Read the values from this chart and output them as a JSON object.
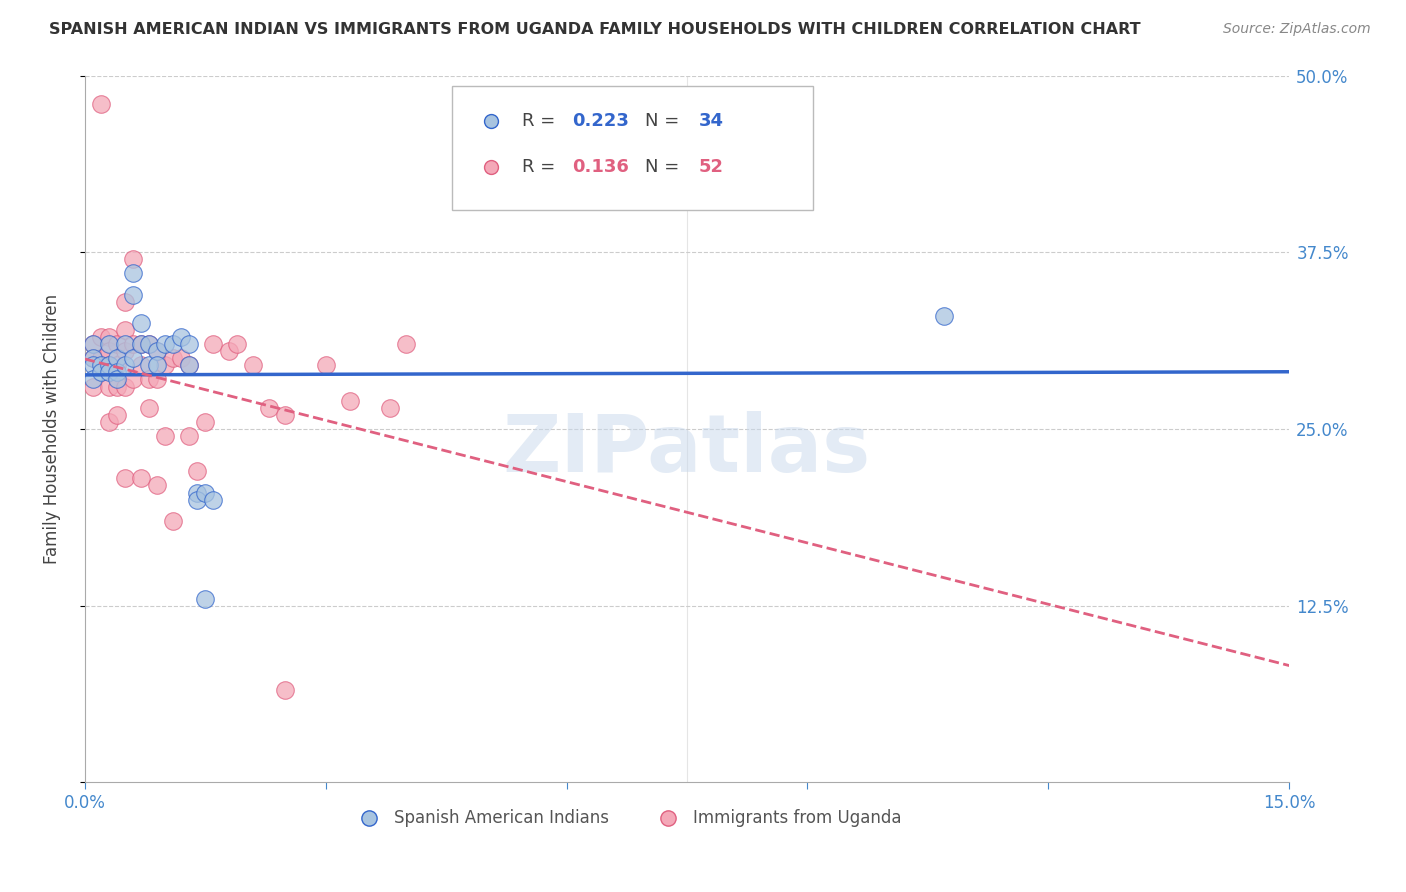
{
  "title": "SPANISH AMERICAN INDIAN VS IMMIGRANTS FROM UGANDA FAMILY HOUSEHOLDS WITH CHILDREN CORRELATION CHART",
  "source": "Source: ZipAtlas.com",
  "ylabel": "Family Households with Children",
  "xmin": 0.0,
  "xmax": 0.15,
  "ymin": 0.0,
  "ymax": 0.5,
  "blue_R": 0.223,
  "blue_N": 34,
  "pink_R": 0.136,
  "pink_N": 52,
  "blue_color": "#A8C4E0",
  "pink_color": "#F4A8B8",
  "blue_line_color": "#3366CC",
  "pink_line_color": "#E06080",
  "legend_label_blue": "Spanish American Indians",
  "legend_label_pink": "Immigrants from Uganda",
  "watermark": "ZIPatlas",
  "blue_scatter_x": [
    0.001,
    0.001,
    0.001,
    0.001,
    0.002,
    0.002,
    0.003,
    0.003,
    0.003,
    0.004,
    0.004,
    0.004,
    0.005,
    0.005,
    0.006,
    0.006,
    0.006,
    0.007,
    0.007,
    0.008,
    0.008,
    0.009,
    0.009,
    0.01,
    0.011,
    0.012,
    0.013,
    0.013,
    0.014,
    0.014,
    0.015,
    0.016,
    0.107,
    0.015
  ],
  "blue_scatter_y": [
    0.31,
    0.3,
    0.295,
    0.285,
    0.295,
    0.29,
    0.31,
    0.295,
    0.29,
    0.3,
    0.29,
    0.285,
    0.31,
    0.295,
    0.36,
    0.345,
    0.3,
    0.325,
    0.31,
    0.31,
    0.295,
    0.305,
    0.295,
    0.31,
    0.31,
    0.315,
    0.31,
    0.295,
    0.205,
    0.2,
    0.205,
    0.2,
    0.33,
    0.13
  ],
  "pink_scatter_x": [
    0.001,
    0.001,
    0.001,
    0.002,
    0.002,
    0.002,
    0.003,
    0.003,
    0.003,
    0.003,
    0.003,
    0.004,
    0.004,
    0.004,
    0.004,
    0.005,
    0.005,
    0.005,
    0.005,
    0.005,
    0.006,
    0.006,
    0.006,
    0.007,
    0.007,
    0.007,
    0.008,
    0.008,
    0.008,
    0.009,
    0.009,
    0.009,
    0.01,
    0.01,
    0.011,
    0.011,
    0.012,
    0.013,
    0.013,
    0.014,
    0.015,
    0.016,
    0.018,
    0.019,
    0.021,
    0.023,
    0.025,
    0.03,
    0.033,
    0.038,
    0.04,
    0.025
  ],
  "pink_scatter_y": [
    0.31,
    0.3,
    0.28,
    0.48,
    0.315,
    0.3,
    0.315,
    0.305,
    0.295,
    0.28,
    0.255,
    0.31,
    0.295,
    0.28,
    0.26,
    0.34,
    0.32,
    0.305,
    0.28,
    0.215,
    0.37,
    0.31,
    0.285,
    0.31,
    0.295,
    0.215,
    0.31,
    0.285,
    0.265,
    0.305,
    0.285,
    0.21,
    0.295,
    0.245,
    0.3,
    0.185,
    0.3,
    0.295,
    0.245,
    0.22,
    0.255,
    0.31,
    0.305,
    0.31,
    0.295,
    0.265,
    0.26,
    0.295,
    0.27,
    0.265,
    0.31,
    0.065
  ]
}
